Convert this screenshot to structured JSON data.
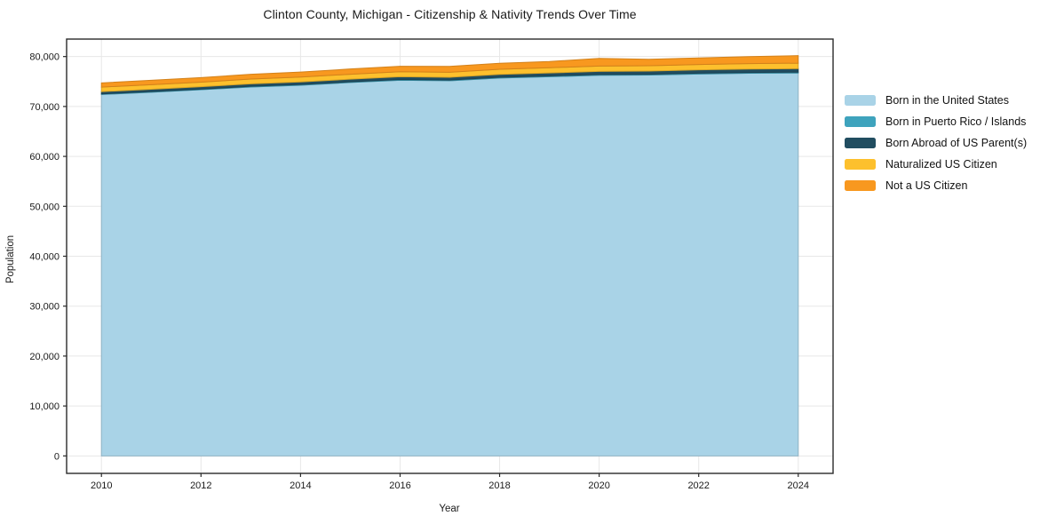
{
  "title": "Clinton County, Michigan - Citizenship & Nativity Trends Over Time",
  "chart_data": {
    "type": "area",
    "stacked": true,
    "title": "Clinton County, Michigan - Citizenship & Nativity Trends Over Time",
    "xlabel": "Year",
    "ylabel": "Population",
    "x": [
      2010,
      2011,
      2012,
      2013,
      2014,
      2015,
      2016,
      2017,
      2018,
      2019,
      2020,
      2021,
      2022,
      2023,
      2024
    ],
    "series": [
      {
        "name": "Born in the United States",
        "color": "#a9d3e7",
        "values": [
          72400,
          72850,
          73350,
          73900,
          74250,
          74800,
          75250,
          75150,
          75700,
          75950,
          76250,
          76300,
          76500,
          76650,
          76700
        ]
      },
      {
        "name": "Born in Puerto Rico / Islands",
        "color": "#3ea3bd",
        "values": [
          120,
          130,
          110,
          140,
          150,
          130,
          160,
          140,
          150,
          170,
          160,
          150,
          170,
          160,
          180
        ]
      },
      {
        "name": "Born Abroad of US Parent(s)",
        "color": "#214d60",
        "values": [
          450,
          470,
          490,
          500,
          520,
          540,
          550,
          560,
          580,
          600,
          620,
          640,
          660,
          680,
          700
        ]
      },
      {
        "name": "Naturalized US Citizen",
        "color": "#fdc02d",
        "values": [
          900,
          920,
          930,
          950,
          970,
          990,
          1000,
          1010,
          1030,
          1040,
          1060,
          1070,
          1080,
          1090,
          1100
        ]
      },
      {
        "name": "Not a US Citizen",
        "color": "#f8981f",
        "values": [
          850,
          880,
          910,
          950,
          1000,
          1050,
          1100,
          1180,
          1200,
          1250,
          1550,
          1300,
          1320,
          1400,
          1500
        ]
      }
    ],
    "xticks": [
      2010,
      2012,
      2014,
      2016,
      2018,
      2020,
      2022,
      2024
    ],
    "yticks": [
      0,
      10000,
      20000,
      30000,
      40000,
      50000,
      60000,
      70000,
      80000
    ],
    "xlim": [
      2009.3,
      2024.7
    ],
    "ylim": [
      -3500,
      83500
    ],
    "grid": true,
    "legend_position": "right",
    "colors": {
      "grid": "#e7e7e7",
      "spine": "#2a2a2a",
      "tick_text": "#1a1a1a",
      "background": "#ffffff"
    }
  }
}
